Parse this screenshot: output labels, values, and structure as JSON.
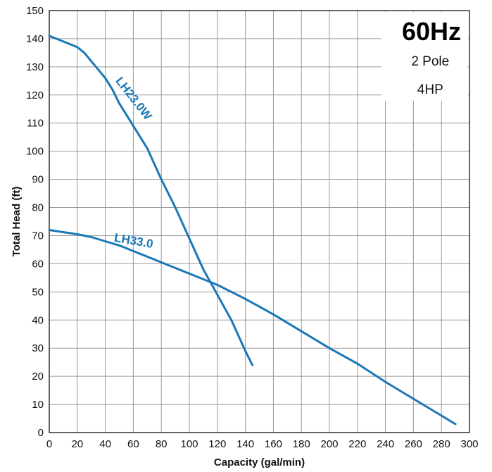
{
  "chart_data": {
    "type": "line",
    "title": "60Hz",
    "subtitle_lines": [
      "2 Pole",
      "4HP"
    ],
    "xlabel": "Capacity (gal/min)",
    "ylabel": "Total Head (ft)",
    "xlim": [
      0,
      300
    ],
    "ylim": [
      0,
      150
    ],
    "xticks": [
      0,
      20,
      40,
      60,
      80,
      100,
      120,
      140,
      160,
      180,
      200,
      220,
      240,
      260,
      280,
      300
    ],
    "yticks": [
      0,
      10,
      20,
      30,
      40,
      50,
      60,
      70,
      80,
      90,
      100,
      110,
      120,
      130,
      140,
      150
    ],
    "grid": true,
    "legend_placement": "top-right",
    "line_color": "#1a78b8",
    "series": [
      {
        "name": "LH23.0W",
        "x": [
          0,
          20,
          25,
          30,
          40,
          45,
          50,
          60,
          70,
          80,
          90,
          100,
          110,
          120,
          130,
          140,
          145
        ],
        "y": [
          141,
          137,
          135,
          132,
          126,
          122,
          117,
          109,
          101,
          90,
          80,
          69,
          58,
          49,
          40,
          29,
          24
        ]
      },
      {
        "name": "LH33.0",
        "x": [
          0,
          20,
          30,
          40,
          50,
          60,
          70,
          80,
          90,
          100,
          110,
          120,
          140,
          160,
          180,
          200,
          220,
          240,
          260,
          280,
          290
        ],
        "y": [
          72,
          70.5,
          69.5,
          68,
          66.5,
          64.5,
          62.5,
          60.5,
          58.5,
          56.5,
          54.5,
          52.5,
          47.5,
          42,
          36,
          30,
          24.5,
          18,
          12,
          6,
          3
        ]
      }
    ]
  }
}
